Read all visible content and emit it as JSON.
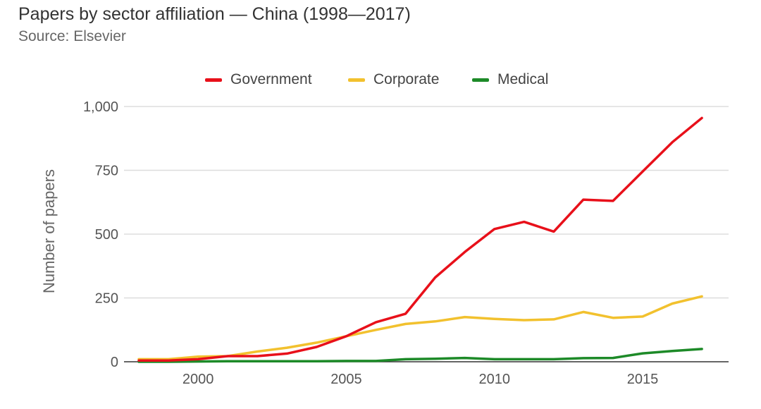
{
  "header": {
    "title": "Papers by sector affiliation — China (1998—2017)",
    "subtitle": "Source: Elsevier"
  },
  "legend": {
    "items": [
      {
        "label": "Government",
        "color": "#e8101a"
      },
      {
        "label": "Corporate",
        "color": "#f2c12e"
      },
      {
        "label": "Medical",
        "color": "#1d8a28"
      }
    ]
  },
  "chart_data": {
    "type": "line",
    "title": "Papers by sector affiliation — China (1998—2017)",
    "subtitle": "Source: Elsevier",
    "xlabel": "",
    "ylabel": "Number of papers",
    "x": [
      1998,
      1999,
      2000,
      2001,
      2002,
      2003,
      2004,
      2005,
      2006,
      2007,
      2008,
      2009,
      2010,
      2011,
      2012,
      2013,
      2014,
      2015,
      2016,
      2017
    ],
    "xticks": [
      2000,
      2005,
      2010,
      2015
    ],
    "xtick_labels": [
      "2000",
      "2005",
      "2010",
      "2015"
    ],
    "xlim": [
      1997.5,
      2017.9
    ],
    "ylim": [
      0,
      1000
    ],
    "yticks": [
      0,
      250,
      500,
      750,
      1000
    ],
    "ytick_labels": [
      "0",
      "250",
      "500",
      "750",
      "1,000"
    ],
    "grid": true,
    "legend_position": "top",
    "series": [
      {
        "name": "Government",
        "color": "#e8101a",
        "values": [
          5,
          5,
          10,
          22,
          22,
          32,
          58,
          100,
          155,
          188,
          330,
          430,
          520,
          548,
          510,
          635,
          630,
          745,
          860,
          955
        ]
      },
      {
        "name": "Corporate",
        "color": "#f2c12e",
        "values": [
          10,
          10,
          20,
          22,
          40,
          55,
          75,
          100,
          125,
          148,
          158,
          175,
          168,
          163,
          166,
          195,
          172,
          177,
          228,
          256
        ]
      },
      {
        "name": "Medical",
        "color": "#1d8a28",
        "values": [
          0,
          0,
          1,
          2,
          2,
          2,
          2,
          3,
          3,
          10,
          12,
          15,
          10,
          10,
          10,
          14,
          15,
          33,
          42,
          50
        ]
      }
    ]
  }
}
